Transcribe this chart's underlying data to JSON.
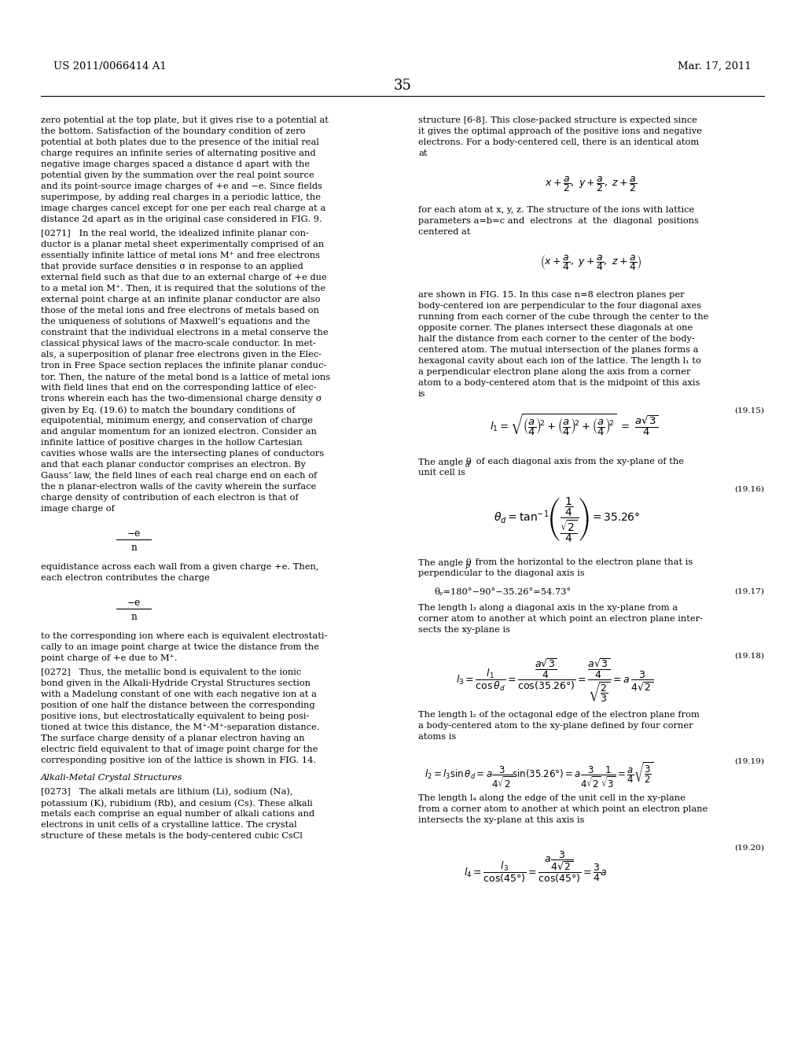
{
  "header_left": "US 2011/0066414 A1",
  "header_right": "Mar. 17, 2011",
  "page_number": "35",
  "body_fontsize": 8.2,
  "header_fontsize": 9.5,
  "eq_fontsize": 9.0,
  "small_fontsize": 7.5
}
